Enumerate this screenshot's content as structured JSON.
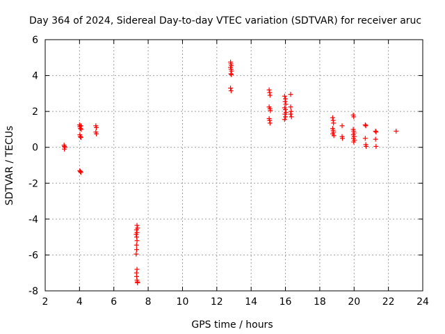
{
  "chart_data": {
    "type": "scatter",
    "title": "Day 364 of 2024, Sidereal Day-to-day VTEC variation (SDTVAR) for receiver aruc",
    "xlabel": "GPS time / hours",
    "ylabel": "SDTVAR / TECUs",
    "xlim": [
      2,
      24
    ],
    "ylim": [
      -8,
      6
    ],
    "xticks": [
      2,
      4,
      6,
      8,
      10,
      12,
      14,
      16,
      18,
      20,
      22,
      24
    ],
    "yticks": [
      -8,
      -6,
      -4,
      -2,
      0,
      2,
      4,
      6
    ],
    "xtick_labels": [
      "2",
      "4",
      "6",
      "8",
      "10",
      "12",
      "14",
      "16",
      "18",
      "20",
      "22",
      "24"
    ],
    "ytick_labels": [
      "-8",
      "-6",
      "-4",
      "-2",
      "0",
      "2",
      "4",
      "6"
    ],
    "grid": true,
    "marker": "+",
    "color": "#ff0000",
    "series": [
      {
        "name": "SDTVAR",
        "points": [
          [
            3.1,
            0.12
          ],
          [
            3.12,
            0.05
          ],
          [
            3.15,
            0.0
          ],
          [
            3.12,
            -0.1
          ],
          [
            4.0,
            1.25
          ],
          [
            4.02,
            1.15
          ],
          [
            4.05,
            1.05
          ],
          [
            4.08,
            1.2
          ],
          [
            4.1,
            1.0
          ],
          [
            4.02,
            0.7
          ],
          [
            4.05,
            0.6
          ],
          [
            4.08,
            0.55
          ],
          [
            4.02,
            -1.3
          ],
          [
            4.05,
            -1.35
          ],
          [
            4.08,
            -1.4
          ],
          [
            4.95,
            1.2
          ],
          [
            4.98,
            1.1
          ],
          [
            4.95,
            0.85
          ],
          [
            4.98,
            0.75
          ],
          [
            7.35,
            -4.35
          ],
          [
            7.38,
            -4.5
          ],
          [
            7.32,
            -4.6
          ],
          [
            7.35,
            -4.75
          ],
          [
            7.3,
            -4.85
          ],
          [
            7.33,
            -5.0
          ],
          [
            7.35,
            -5.2
          ],
          [
            7.32,
            -5.45
          ],
          [
            7.33,
            -5.7
          ],
          [
            7.3,
            -5.95
          ],
          [
            7.35,
            -6.8
          ],
          [
            7.32,
            -7.0
          ],
          [
            7.33,
            -7.2
          ],
          [
            7.35,
            -7.4
          ],
          [
            7.37,
            -7.5
          ],
          [
            7.38,
            -7.55
          ],
          [
            12.8,
            4.75
          ],
          [
            12.82,
            4.65
          ],
          [
            12.85,
            4.55
          ],
          [
            12.8,
            4.45
          ],
          [
            12.83,
            4.35
          ],
          [
            12.86,
            4.25
          ],
          [
            12.82,
            4.1
          ],
          [
            12.85,
            4.05
          ],
          [
            12.8,
            3.3
          ],
          [
            12.83,
            3.15
          ],
          [
            15.05,
            3.2
          ],
          [
            15.08,
            3.05
          ],
          [
            15.1,
            2.9
          ],
          [
            15.05,
            2.25
          ],
          [
            15.1,
            2.15
          ],
          [
            15.12,
            2.05
          ],
          [
            15.05,
            1.6
          ],
          [
            15.08,
            1.5
          ],
          [
            15.1,
            1.35
          ],
          [
            15.95,
            2.85
          ],
          [
            16.0,
            2.7
          ],
          [
            15.98,
            2.55
          ],
          [
            16.02,
            2.4
          ],
          [
            15.95,
            2.2
          ],
          [
            16.0,
            2.1
          ],
          [
            16.03,
            1.95
          ],
          [
            15.97,
            1.85
          ],
          [
            16.0,
            1.7
          ],
          [
            15.95,
            1.55
          ],
          [
            16.3,
            2.95
          ],
          [
            16.3,
            2.25
          ],
          [
            16.33,
            2.0
          ],
          [
            16.3,
            1.85
          ],
          [
            16.35,
            1.7
          ],
          [
            18.75,
            1.65
          ],
          [
            18.78,
            1.5
          ],
          [
            18.8,
            1.35
          ],
          [
            18.75,
            1.05
          ],
          [
            18.78,
            0.95
          ],
          [
            18.8,
            0.85
          ],
          [
            18.76,
            0.75
          ],
          [
            18.82,
            0.65
          ],
          [
            19.3,
            1.2
          ],
          [
            19.3,
            0.6
          ],
          [
            19.32,
            0.5
          ],
          [
            19.95,
            1.8
          ],
          [
            19.98,
            1.7
          ],
          [
            19.95,
            1.0
          ],
          [
            19.98,
            0.9
          ],
          [
            20.0,
            0.8
          ],
          [
            19.96,
            0.7
          ],
          [
            20.0,
            0.6
          ],
          [
            19.97,
            0.5
          ],
          [
            20.02,
            0.4
          ],
          [
            19.98,
            0.3
          ],
          [
            20.65,
            1.25
          ],
          [
            20.68,
            1.2
          ],
          [
            20.65,
            0.5
          ],
          [
            20.68,
            0.15
          ],
          [
            20.7,
            0.05
          ],
          [
            21.25,
            0.9
          ],
          [
            21.28,
            0.85
          ],
          [
            21.25,
            0.45
          ],
          [
            21.28,
            0.05
          ],
          [
            22.45,
            0.9
          ]
        ]
      }
    ]
  }
}
